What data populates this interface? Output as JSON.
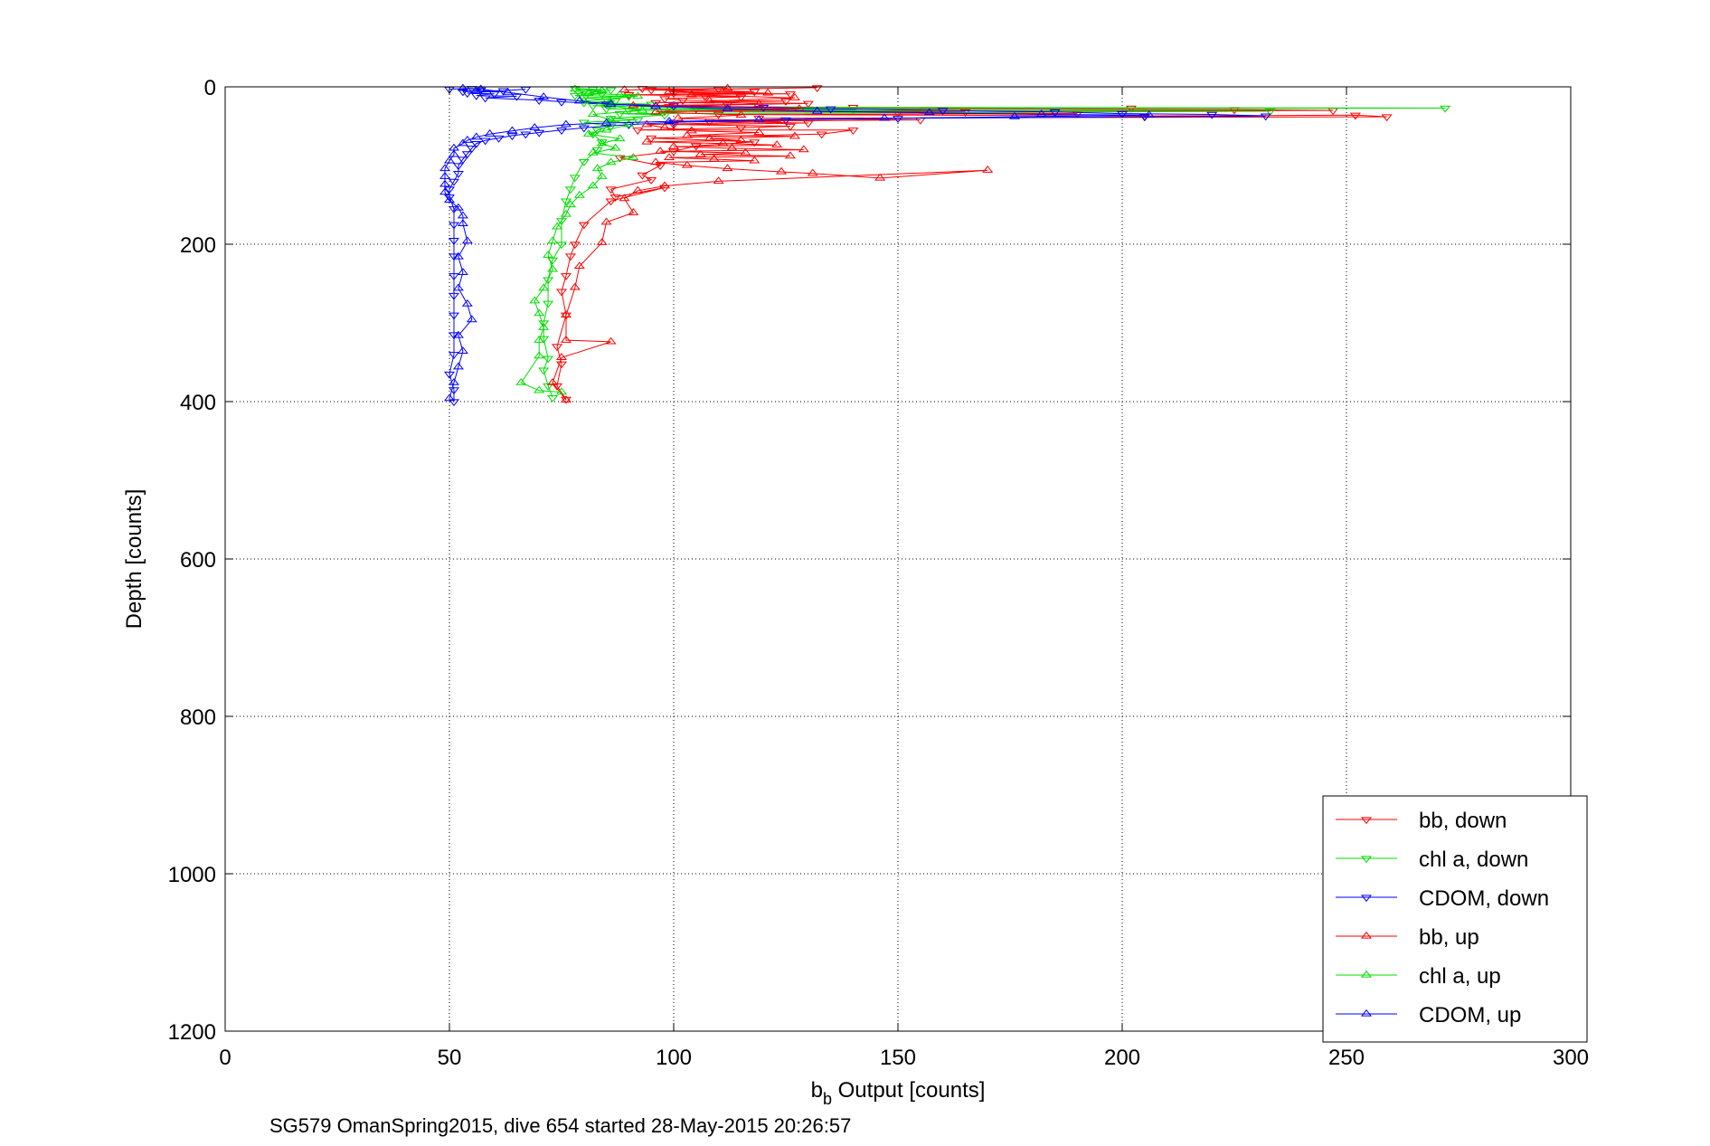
{
  "chart_data": {
    "type": "scatter",
    "xlabel_main": "b",
    "xlabel_sub": "b",
    "xlabel_rest": " Output [counts]",
    "ylabel": "Depth [counts]",
    "caption": "SG579 OmanSpring2015, dive 654 started 28-May-2015 20:26:57",
    "xlim": [
      0,
      300
    ],
    "ylim": [
      0,
      1200
    ],
    "y_reversed": true,
    "xticks": [
      0,
      50,
      100,
      150,
      200,
      250,
      300
    ],
    "yticks": [
      0,
      200,
      400,
      600,
      800,
      1000,
      1200
    ],
    "grid": true,
    "legend_position": "bottom-right",
    "series": [
      {
        "name": "bb, down",
        "color": "#ff0000",
        "marker": "triangle-down",
        "points": [
          [
            93,
            2
          ],
          [
            110,
            3
          ],
          [
            132,
            1
          ],
          [
            95,
            4
          ],
          [
            118,
            6
          ],
          [
            100,
            8
          ],
          [
            126,
            9
          ],
          [
            90,
            10
          ],
          [
            107,
            12
          ],
          [
            115,
            13
          ],
          [
            98,
            15
          ],
          [
            102,
            17
          ],
          [
            125,
            18
          ],
          [
            96,
            20
          ],
          [
            130,
            21
          ],
          [
            112,
            23
          ],
          [
            99,
            25
          ],
          [
            140,
            26
          ],
          [
            202,
            27
          ],
          [
            105,
            28
          ],
          [
            225,
            29
          ],
          [
            247,
            30
          ],
          [
            98,
            31
          ],
          [
            165,
            32
          ],
          [
            150,
            33
          ],
          [
            190,
            34
          ],
          [
            110,
            35
          ],
          [
            205,
            37
          ],
          [
            252,
            36
          ],
          [
            259,
            38
          ],
          [
            119,
            40
          ],
          [
            155,
            42
          ],
          [
            108,
            44
          ],
          [
            130,
            46
          ],
          [
            100,
            48
          ],
          [
            126,
            50
          ],
          [
            115,
            52
          ],
          [
            92,
            55
          ],
          [
            140,
            55
          ],
          [
            133,
            60
          ],
          [
            95,
            65
          ],
          [
            118,
            70
          ],
          [
            105,
            75
          ],
          [
            100,
            82
          ],
          [
            88,
            90
          ],
          [
            97,
            100
          ],
          [
            93,
            112
          ],
          [
            95,
            118
          ],
          [
            86,
            130
          ],
          [
            87,
            140
          ],
          [
            98,
            128
          ],
          [
            86,
            145
          ],
          [
            80,
            175
          ],
          [
            78,
            200
          ],
          [
            77,
            215
          ],
          [
            76,
            240
          ],
          [
            75,
            260
          ],
          [
            76,
            290
          ],
          [
            74,
            330
          ],
          [
            75,
            352
          ],
          [
            74,
            380
          ],
          [
            76,
            397
          ]
        ]
      },
      {
        "name": "chl a, down",
        "color": "#00dd00",
        "marker": "triangle-down",
        "points": [
          [
            78,
            2
          ],
          [
            82,
            3
          ],
          [
            86,
            4
          ],
          [
            80,
            6
          ],
          [
            79,
            8
          ],
          [
            84,
            9
          ],
          [
            78,
            11
          ],
          [
            90,
            12
          ],
          [
            80,
            14
          ],
          [
            85,
            16
          ],
          [
            87,
            18
          ],
          [
            80,
            20
          ],
          [
            95,
            22
          ],
          [
            82,
            24
          ],
          [
            100,
            26
          ],
          [
            272,
            27
          ],
          [
            85,
            28
          ],
          [
            140,
            29
          ],
          [
            90,
            30
          ],
          [
            233,
            31
          ],
          [
            88,
            34
          ],
          [
            98,
            36
          ],
          [
            86,
            40
          ],
          [
            92,
            42
          ],
          [
            80,
            45
          ],
          [
            86,
            50
          ],
          [
            83,
            55
          ],
          [
            82,
            60
          ],
          [
            84,
            70
          ],
          [
            83,
            80
          ],
          [
            80,
            95
          ],
          [
            78,
            115
          ],
          [
            77,
            130
          ],
          [
            76,
            145
          ],
          [
            75,
            170
          ],
          [
            75,
            200
          ],
          [
            73,
            220
          ],
          [
            72,
            245
          ],
          [
            72,
            275
          ],
          [
            71,
            300
          ],
          [
            71,
            320
          ],
          [
            72,
            345
          ],
          [
            71,
            360
          ],
          [
            72,
            380
          ],
          [
            73,
            395
          ]
        ]
      },
      {
        "name": "CDOM, down",
        "color": "#0000ff",
        "marker": "triangle-down",
        "points": [
          [
            50,
            3
          ],
          [
            55,
            2
          ],
          [
            57,
            4
          ],
          [
            53,
            6
          ],
          [
            62,
            5
          ],
          [
            67,
            3
          ],
          [
            54,
            8
          ],
          [
            60,
            9
          ],
          [
            56,
            11
          ],
          [
            65,
            12
          ],
          [
            58,
            14
          ],
          [
            70,
            17
          ],
          [
            75,
            19
          ],
          [
            85,
            22
          ],
          [
            100,
            24
          ],
          [
            120,
            26
          ],
          [
            135,
            28
          ],
          [
            160,
            30
          ],
          [
            185,
            32
          ],
          [
            200,
            34
          ],
          [
            220,
            35
          ],
          [
            232,
            37
          ],
          [
            205,
            38
          ],
          [
            150,
            40
          ],
          [
            125,
            42
          ],
          [
            100,
            45
          ],
          [
            90,
            48
          ],
          [
            80,
            52
          ],
          [
            75,
            55
          ],
          [
            70,
            58
          ],
          [
            67,
            60
          ],
          [
            64,
            62
          ],
          [
            61,
            65
          ],
          [
            58,
            68
          ],
          [
            56,
            72
          ],
          [
            55,
            78
          ],
          [
            54,
            85
          ],
          [
            53,
            92
          ],
          [
            52,
            100
          ],
          [
            52,
            110
          ],
          [
            51,
            120
          ],
          [
            50,
            130
          ],
          [
            50,
            140
          ],
          [
            51,
            155
          ],
          [
            51,
            175
          ],
          [
            51,
            195
          ],
          [
            51,
            215
          ],
          [
            51,
            240
          ],
          [
            51,
            265
          ],
          [
            51,
            290
          ],
          [
            51,
            315
          ],
          [
            51,
            340
          ],
          [
            50,
            365
          ],
          [
            51,
            385
          ],
          [
            51,
            400
          ]
        ]
      },
      {
        "name": "bb, up",
        "color": "#ff0000",
        "marker": "triangle-up",
        "points": [
          [
            89,
            4
          ],
          [
            112,
            2
          ],
          [
            99,
            6
          ],
          [
            121,
            8
          ],
          [
            104,
            10
          ],
          [
            127,
            14
          ],
          [
            108,
            18
          ],
          [
            119,
            22
          ],
          [
            91,
            24
          ],
          [
            128,
            28
          ],
          [
            96,
            32
          ],
          [
            115,
            36
          ],
          [
            101,
            40
          ],
          [
            124,
            44
          ],
          [
            94,
            48
          ],
          [
            98,
            52
          ],
          [
            104,
            56
          ],
          [
            119,
            58
          ],
          [
            103,
            62
          ],
          [
            127,
            63
          ],
          [
            108,
            66
          ],
          [
            115,
            68
          ],
          [
            94,
            70
          ],
          [
            111,
            72
          ],
          [
            123,
            74
          ],
          [
            100,
            76
          ],
          [
            113,
            78
          ],
          [
            129,
            80
          ],
          [
            97,
            82
          ],
          [
            116,
            84
          ],
          [
            106,
            86
          ],
          [
            126,
            88
          ],
          [
            99,
            90
          ],
          [
            109,
            92
          ],
          [
            118,
            94
          ],
          [
            96,
            96
          ],
          [
            103,
            100
          ],
          [
            112,
            104
          ],
          [
            124,
            108
          ],
          [
            131,
            110
          ],
          [
            146,
            116
          ],
          [
            170,
            106
          ],
          [
            110,
            120
          ],
          [
            98,
            126
          ],
          [
            92,
            132
          ],
          [
            89,
            142
          ],
          [
            91,
            160
          ],
          [
            85,
            172
          ],
          [
            84,
            198
          ],
          [
            79,
            228
          ],
          [
            78,
            255
          ],
          [
            76,
            290
          ],
          [
            76,
            322
          ],
          [
            86,
            324
          ],
          [
            75,
            344
          ],
          [
            73,
            376
          ],
          [
            76,
            398
          ]
        ]
      },
      {
        "name": "chl a, up",
        "color": "#00dd00",
        "marker": "triangle-up",
        "points": [
          [
            78,
            3
          ],
          [
            84,
            5
          ],
          [
            81,
            8
          ],
          [
            88,
            10
          ],
          [
            92,
            12
          ],
          [
            80,
            18
          ],
          [
            86,
            24
          ],
          [
            93,
            30
          ],
          [
            82,
            35
          ],
          [
            86,
            42
          ],
          [
            90,
            48
          ],
          [
            85,
            55
          ],
          [
            81,
            60
          ],
          [
            88,
            66
          ],
          [
            84,
            72
          ],
          [
            87,
            78
          ],
          [
            82,
            84
          ],
          [
            91,
            90
          ],
          [
            86,
            96
          ],
          [
            83,
            104
          ],
          [
            84,
            114
          ],
          [
            82,
            126
          ],
          [
            79,
            138
          ],
          [
            77,
            150
          ],
          [
            76,
            162
          ],
          [
            74,
            178
          ],
          [
            73,
            196
          ],
          [
            72,
            214
          ],
          [
            73,
            232
          ],
          [
            71,
            256
          ],
          [
            69,
            272
          ],
          [
            70,
            288
          ],
          [
            71,
            306
          ],
          [
            70,
            322
          ],
          [
            70,
            342
          ],
          [
            66,
            376
          ],
          [
            70,
            386
          ],
          [
            75,
            388
          ]
        ]
      },
      {
        "name": "CDOM, up",
        "color": "#0000ff",
        "marker": "triangle-up",
        "points": [
          [
            53,
            2
          ],
          [
            57,
            3
          ],
          [
            63,
            7
          ],
          [
            71,
            13
          ],
          [
            79,
            18
          ],
          [
            86,
            22
          ],
          [
            96,
            25
          ],
          [
            112,
            28
          ],
          [
            132,
            31
          ],
          [
            157,
            33
          ],
          [
            182,
            35
          ],
          [
            206,
            36
          ],
          [
            176,
            38
          ],
          [
            147,
            40
          ],
          [
            119,
            42
          ],
          [
            99,
            44
          ],
          [
            85,
            46
          ],
          [
            76,
            48
          ],
          [
            69,
            52
          ],
          [
            64,
            56
          ],
          [
            59,
            60
          ],
          [
            56,
            64
          ],
          [
            54,
            68
          ],
          [
            53,
            72
          ],
          [
            51,
            78
          ],
          [
            51,
            86
          ],
          [
            50,
            94
          ],
          [
            49,
            104
          ],
          [
            49,
            114
          ],
          [
            49,
            124
          ],
          [
            49,
            134
          ],
          [
            50,
            144
          ],
          [
            52,
            154
          ],
          [
            53,
            164
          ],
          [
            53,
            174
          ],
          [
            54,
            196
          ],
          [
            52,
            216
          ],
          [
            53,
            236
          ],
          [
            52,
            256
          ],
          [
            54,
            276
          ],
          [
            55,
            296
          ],
          [
            52,
            316
          ],
          [
            53,
            336
          ],
          [
            52,
            356
          ],
          [
            51,
            376
          ],
          [
            50,
            396
          ]
        ]
      }
    ]
  }
}
